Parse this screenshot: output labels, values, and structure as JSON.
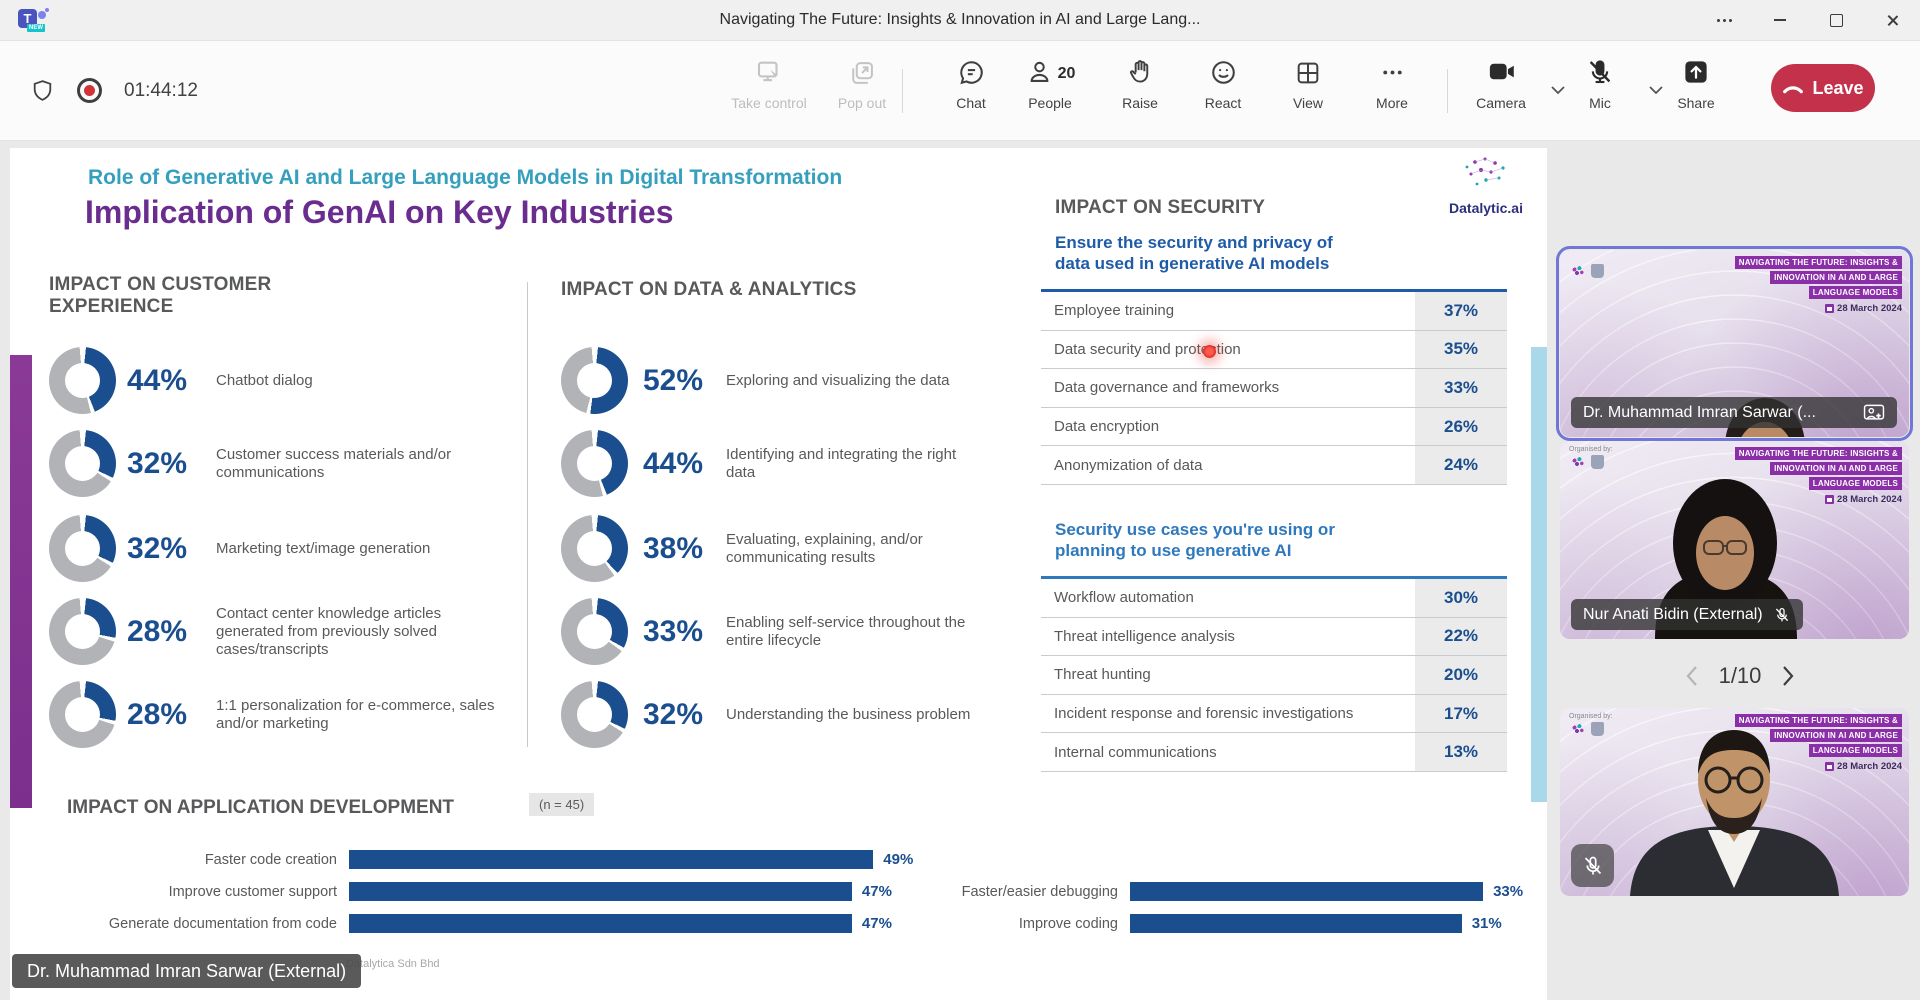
{
  "window": {
    "title": "Navigating The Future: Insights & Innovation in AI and Large Lang...",
    "app_letter": "T",
    "app_badge": "NEW"
  },
  "toolbar": {
    "timer": "01:44:12",
    "take_control": "Take control",
    "pop_out": "Pop out",
    "chat": "Chat",
    "people": "People",
    "people_count": "20",
    "raise": "Raise",
    "react": "React",
    "view": "View",
    "more": "More",
    "camera": "Camera",
    "mic": "Mic",
    "share": "Share",
    "leave": "Leave"
  },
  "slide": {
    "kicker": "Role of Generative AI and Large Language Models in Digital Transformation",
    "title": "Implication of GenAI on Key Industries",
    "logo_text": "Datalytic.ai",
    "customer_experience": {
      "heading": "IMPACT ON CUSTOMER EXPERIENCE",
      "items": [
        {
          "pct": 44,
          "label": "Chatbot dialog"
        },
        {
          "pct": 32,
          "label": "Customer success materials and/or communications"
        },
        {
          "pct": 32,
          "label": "Marketing text/image generation"
        },
        {
          "pct": 28,
          "label": "Contact center knowledge articles generated from previously solved cases/transcripts"
        },
        {
          "pct": 28,
          "label": "1:1 personalization for e-commerce, sales and/or marketing"
        }
      ]
    },
    "data_analytics": {
      "heading": "IMPACT ON DATA & ANALYTICS",
      "items": [
        {
          "pct": 52,
          "label": "Exploring and visualizing the data"
        },
        {
          "pct": 44,
          "label": "Identifying and integrating the right data"
        },
        {
          "pct": 38,
          "label": "Evaluating, explaining, and/or communicating results"
        },
        {
          "pct": 33,
          "label": "Enabling self-service throughout the entire lifecycle"
        },
        {
          "pct": 32,
          "label": "Understanding the business problem"
        }
      ]
    },
    "security": {
      "heading": "IMPACT ON SECURITY",
      "subhead1": "Ensure the security and privacy of data used in generative AI models",
      "table1": [
        {
          "label": "Employee training",
          "value": "37%"
        },
        {
          "label": "Data security and protection",
          "value": "35%"
        },
        {
          "label": "Data governance and frameworks",
          "value": "33%"
        },
        {
          "label": "Data encryption",
          "value": "26%"
        },
        {
          "label": "Anonymization of data",
          "value": "24%"
        }
      ],
      "subhead2": "Security use cases you're using or planning to use generative AI",
      "table2": [
        {
          "label": "Workflow automation",
          "value": "30%"
        },
        {
          "label": "Threat intelligence analysis",
          "value": "22%"
        },
        {
          "label": "Threat hunting",
          "value": "20%"
        },
        {
          "label": "Incident response and forensic investigations",
          "value": "17%"
        },
        {
          "label": "Internal communications",
          "value": "13%"
        }
      ]
    },
    "app_dev": {
      "heading": "IMPACT ON APPLICATION DEVELOPMENT",
      "sample": "(n = 45)",
      "left_bars": [
        {
          "label": "Faster code creation",
          "pct": 49
        },
        {
          "label": "Improve customer support",
          "pct": 47
        },
        {
          "label": "Generate documentation from code",
          "pct": 47
        }
      ],
      "right_bars": [
        {
          "label": "Faster/easier debugging",
          "pct": 33
        },
        {
          "label": "Improve coding",
          "pct": 31
        }
      ]
    },
    "footer": "Datalytica Sdn Bhd",
    "presenter_tag": "Dr. Muhammad Imran Sarwar (External)"
  },
  "sidebar": {
    "tiles": [
      {
        "name": "Dr. Muhammad Imran Sarwar (..."
      },
      {
        "name": "Nur Anati Bidin (External)"
      },
      {
        "name": ""
      }
    ],
    "pagination": "1/10",
    "virtual_bg": {
      "organised_by": "Organised by:",
      "banner_line1": "NAVIGATING THE FUTURE: INSIGHTS &",
      "banner_line2": "INNOVATION IN AI AND LARGE",
      "banner_line3": "LANGUAGE MODELS",
      "date": "28 March 2024"
    }
  },
  "colors": {
    "donut_blue": "#1b4e8f",
    "donut_gray": "#b1b3b6",
    "kicker_teal": "#35a0bd",
    "title_purple": "#6a2c8f",
    "security_blue1": "#1f5ca8",
    "security_blue2": "#2e78bd",
    "leave_red": "#c4314b",
    "record_red": "#d13438",
    "active_tile_border": "#7177d6",
    "purple_bar": "#8a3a96",
    "lightblue_bar": "#a9d8e8"
  }
}
